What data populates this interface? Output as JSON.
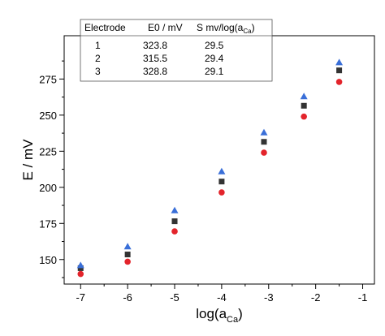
{
  "chart_data": {
    "type": "scatter",
    "title": "",
    "xlabel": "log(a",
    "xlabel_sub": "Ca",
    "xlabel_end": ")",
    "ylabel": "E / mV",
    "xlim": [
      -7.35,
      -0.75
    ],
    "ylim": [
      133,
      305
    ],
    "xticks": [
      -7,
      -6,
      -5,
      -4,
      -3,
      -2,
      -1
    ],
    "xtick_labels": [
      "-7",
      "-6",
      "-5",
      "-4",
      "-3",
      "-2",
      "-1"
    ],
    "yticks": [
      150,
      175,
      200,
      225,
      250,
      275
    ],
    "ytick_labels": [
      "150",
      "175",
      "200",
      "225",
      "250",
      "275"
    ],
    "grid": false,
    "x": [
      -7,
      -6,
      -5,
      -4,
      -3.1,
      -2.25,
      -1.5
    ],
    "series": [
      {
        "values": [
          144,
          153.5,
          176.5,
          204,
          231.5,
          256.5,
          281
        ],
        "marker": "square",
        "color": "#333333"
      },
      {
        "values": [
          140,
          148.5,
          169.5,
          196.5,
          224,
          249,
          273
        ],
        "marker": "circle",
        "color": "#e3242b"
      },
      {
        "values": [
          146,
          159,
          184,
          211,
          238,
          263,
          286.5
        ],
        "marker": "triangle",
        "color": "#3a6fd8"
      }
    ],
    "legend_table": {
      "headers": [
        "Electrode",
        "E0 / mV",
        "S mv/log(a",
        "Ca",
        ")"
      ],
      "rows": [
        [
          "1",
          "323.8",
          "29.5"
        ],
        [
          "2",
          "315.5",
          "29.4"
        ],
        [
          "3",
          "328.8",
          "29.1"
        ]
      ]
    }
  }
}
